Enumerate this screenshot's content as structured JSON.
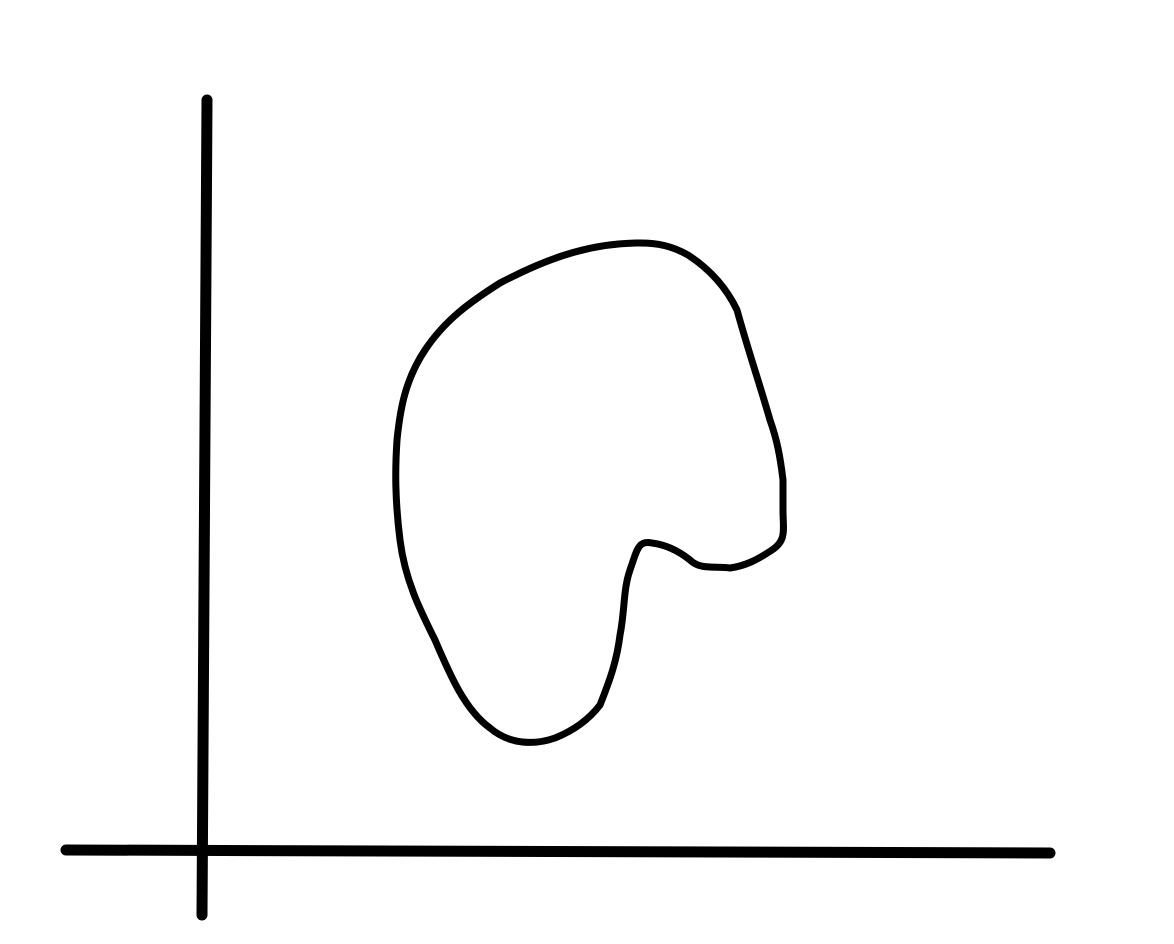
{
  "diagram": {
    "background_color": "#ffffff",
    "stroke_color": "#000000",
    "elements": [
      "y-axis",
      "x-axis",
      "closed-curve"
    ]
  }
}
